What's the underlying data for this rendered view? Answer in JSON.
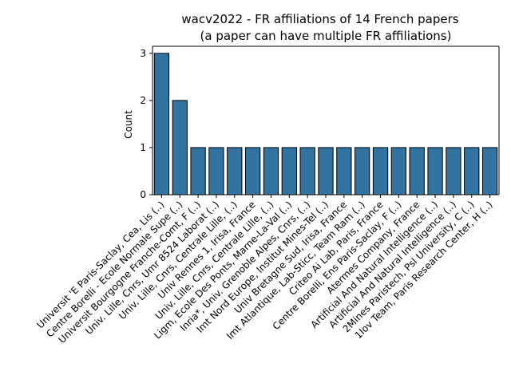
{
  "chart_data": {
    "type": "bar",
    "title": "wacv2022 - FR affiliations of 14 French papers",
    "subtitle": "(a paper can have multiple FR affiliations)",
    "xlabel": "",
    "ylabel": "Count",
    "ylim": [
      0,
      3.15
    ],
    "yticks": [
      "0",
      "1",
      "2",
      "3"
    ],
    "grid": false,
    "bar_color": "#3274a1",
    "bar_edge_color": "#000000",
    "categories": [
      "Universit 'E Paris-Saclay, Cea, Lis (..)",
      "Centre Borelli - Ecole Normale Supe (..)",
      "Universit Bourgogne Franche-Comt, F (..)",
      "Univ. Lille, Cnrs, Umr 8524 Laborat (..)",
      "Univ. Lille, Cnrs, Centrale Lille, (..)",
      "Univ Rennes 1, Irisa, France",
      "Univ. Lille, Cnrs, Centrale Lille, (..)",
      "Ligm, Ecole Des Ponts, Marne-La-Val (..)",
      "Inria*, Univ. Grenoble Alpes, Cnrs, (..)",
      "Imt Nord Europe, Institut Mines-Tel (..)",
      "Univ Bretagne Sud, Irisa, France",
      "Imt Atlantique, Lab-Sticc, Team Ram (..)",
      "Criteo Ai Lab, Paris, France",
      "Centre Borelli, Ens Paris-Saclay, F (..)",
      "Atermes Company, France",
      "Artificial And Natural Intelligence (..)",
      "Artificial And Natural Intelligence (..)",
      "2Mines Paristech, Psl University, C (..)",
      "1Iov Team, Paris Research Center, H (..)"
    ],
    "values": [
      3,
      2,
      1,
      1,
      1,
      1,
      1,
      1,
      1,
      1,
      1,
      1,
      1,
      1,
      1,
      1,
      1,
      1,
      1
    ]
  }
}
